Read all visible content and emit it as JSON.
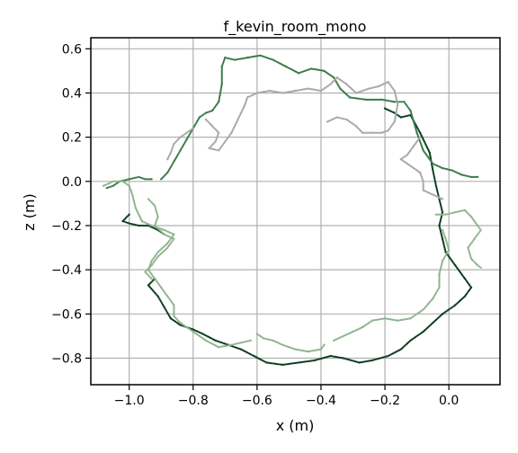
{
  "chart_data": {
    "type": "scatter",
    "title": "f_kevin_room_mono",
    "xlabel": "x (m)",
    "ylabel": "z (m)",
    "xlim": [
      -1.12,
      0.16
    ],
    "ylim": [
      -0.92,
      0.65
    ],
    "xticks": [
      -1.0,
      -0.8,
      -0.6,
      -0.4,
      -0.2,
      0.0
    ],
    "xtick_labels": [
      "−1.0",
      "−0.8",
      "−0.6",
      "−0.4",
      "−0.2",
      "0.0"
    ],
    "yticks": [
      -0.8,
      -0.6,
      -0.4,
      -0.2,
      0.0,
      0.2,
      0.4,
      0.6
    ],
    "ytick_labels": [
      "−0.8",
      "−0.6",
      "−0.4",
      "−0.2",
      "0.0",
      "0.2",
      "0.4",
      "0.6"
    ],
    "grid": true,
    "legend": "none",
    "colors": {
      "dark": "#0b3d1e",
      "mid": "#3a7a48",
      "light": "#8fb48f",
      "gray": "#a8a8a8"
    },
    "series": [
      {
        "color": "#0b3d1e",
        "points": [
          [
            -0.2,
            0.33
          ],
          [
            -0.17,
            0.31
          ],
          [
            -0.15,
            0.29
          ],
          [
            -0.12,
            0.3
          ],
          [
            -0.09,
            0.22
          ],
          [
            -0.06,
            0.13
          ],
          [
            -0.05,
            0.05
          ],
          [
            -0.04,
            -0.02
          ],
          [
            -0.03,
            -0.08
          ],
          [
            -0.02,
            -0.14
          ],
          [
            -0.03,
            -0.2
          ],
          [
            -0.02,
            -0.26
          ],
          [
            -0.01,
            -0.32
          ],
          [
            0.02,
            -0.38
          ],
          [
            0.05,
            -0.44
          ],
          [
            0.07,
            -0.48
          ],
          [
            0.05,
            -0.52
          ],
          [
            0.02,
            -0.56
          ],
          [
            -0.02,
            -0.6
          ],
          [
            -0.05,
            -0.64
          ],
          [
            -0.08,
            -0.68
          ],
          [
            -0.12,
            -0.72
          ],
          [
            -0.15,
            -0.76
          ],
          [
            -0.19,
            -0.79
          ],
          [
            -0.24,
            -0.81
          ],
          [
            -0.28,
            -0.82
          ],
          [
            -0.33,
            -0.8
          ],
          [
            -0.37,
            -0.79
          ],
          [
            -0.42,
            -0.81
          ],
          [
            -0.47,
            -0.82
          ],
          [
            -0.52,
            -0.83
          ],
          [
            -0.57,
            -0.82
          ],
          [
            -0.61,
            -0.79
          ],
          [
            -0.65,
            -0.76
          ],
          [
            -0.69,
            -0.74
          ],
          [
            -0.73,
            -0.72
          ],
          [
            -0.77,
            -0.69
          ],
          [
            -0.8,
            -0.67
          ],
          [
            -0.84,
            -0.65
          ],
          [
            -0.87,
            -0.62
          ],
          [
            -0.89,
            -0.57
          ],
          [
            -0.91,
            -0.52
          ],
          [
            -0.94,
            -0.47
          ],
          [
            -0.92,
            -0.44
          ]
        ]
      },
      {
        "color": "#0b3d1e",
        "points": [
          [
            -0.89,
            -0.24
          ],
          [
            -0.91,
            -0.22
          ],
          [
            -0.94,
            -0.2
          ],
          [
            -0.97,
            -0.2
          ],
          [
            -1.0,
            -0.19
          ],
          [
            -1.02,
            -0.18
          ],
          [
            -1.0,
            -0.15
          ]
        ]
      },
      {
        "color": "#3a7a48",
        "points": [
          [
            -0.9,
            0.01
          ],
          [
            -0.88,
            0.04
          ],
          [
            -0.86,
            0.09
          ],
          [
            -0.84,
            0.14
          ],
          [
            -0.82,
            0.19
          ],
          [
            -0.8,
            0.24
          ],
          [
            -0.78,
            0.29
          ],
          [
            -0.76,
            0.31
          ],
          [
            -0.74,
            0.32
          ],
          [
            -0.72,
            0.36
          ],
          [
            -0.71,
            0.44
          ],
          [
            -0.71,
            0.52
          ],
          [
            -0.7,
            0.56
          ],
          [
            -0.67,
            0.55
          ],
          [
            -0.63,
            0.56
          ],
          [
            -0.59,
            0.57
          ],
          [
            -0.55,
            0.55
          ],
          [
            -0.51,
            0.52
          ],
          [
            -0.47,
            0.49
          ],
          [
            -0.43,
            0.51
          ],
          [
            -0.39,
            0.5
          ],
          [
            -0.36,
            0.47
          ],
          [
            -0.34,
            0.42
          ],
          [
            -0.31,
            0.38
          ],
          [
            -0.26,
            0.37
          ],
          [
            -0.21,
            0.37
          ],
          [
            -0.17,
            0.36
          ],
          [
            -0.14,
            0.36
          ],
          [
            -0.12,
            0.32
          ],
          [
            -0.1,
            0.22
          ],
          [
            -0.08,
            0.14
          ],
          [
            -0.05,
            0.08
          ],
          [
            -0.02,
            0.06
          ],
          [
            0.01,
            0.05
          ],
          [
            0.04,
            0.03
          ],
          [
            0.07,
            0.02
          ],
          [
            0.09,
            0.02
          ]
        ]
      },
      {
        "color": "#3a7a48",
        "points": [
          [
            -0.93,
            0.01
          ],
          [
            -0.95,
            0.01
          ],
          [
            -0.97,
            0.02
          ],
          [
            -1.0,
            0.01
          ],
          [
            -1.03,
            0.0
          ],
          [
            -1.05,
            -0.02
          ],
          [
            -1.07,
            -0.03
          ]
        ]
      },
      {
        "color": "#8fb48f",
        "points": [
          [
            -0.04,
            -0.15
          ],
          [
            -0.01,
            -0.15
          ],
          [
            0.02,
            -0.14
          ],
          [
            0.05,
            -0.13
          ],
          [
            0.07,
            -0.16
          ],
          [
            0.09,
            -0.2
          ],
          [
            0.1,
            -0.22
          ],
          [
            0.08,
            -0.26
          ],
          [
            0.06,
            -0.3
          ],
          [
            0.07,
            -0.35
          ],
          [
            0.09,
            -0.38
          ],
          [
            0.1,
            -0.39
          ]
        ]
      },
      {
        "color": "#8fb48f",
        "points": [
          [
            -0.02,
            -0.22
          ],
          [
            -0.01,
            -0.26
          ],
          [
            0.0,
            -0.31
          ],
          [
            -0.02,
            -0.36
          ],
          [
            -0.03,
            -0.42
          ],
          [
            -0.03,
            -0.48
          ],
          [
            -0.05,
            -0.53
          ],
          [
            -0.08,
            -0.58
          ],
          [
            -0.12,
            -0.62
          ],
          [
            -0.16,
            -0.63
          ],
          [
            -0.2,
            -0.62
          ],
          [
            -0.24,
            -0.63
          ],
          [
            -0.27,
            -0.66
          ],
          [
            -0.3,
            -0.68
          ],
          [
            -0.33,
            -0.7
          ],
          [
            -0.36,
            -0.72
          ]
        ]
      },
      {
        "color": "#8fb48f",
        "points": [
          [
            -0.39,
            -0.74
          ],
          [
            -0.4,
            -0.76
          ],
          [
            -0.44,
            -0.77
          ],
          [
            -0.48,
            -0.76
          ],
          [
            -0.52,
            -0.74
          ],
          [
            -0.55,
            -0.72
          ],
          [
            -0.58,
            -0.71
          ],
          [
            -0.6,
            -0.69
          ]
        ]
      },
      {
        "color": "#8fb48f",
        "points": [
          [
            -0.62,
            -0.72
          ],
          [
            -0.65,
            -0.73
          ],
          [
            -0.68,
            -0.74
          ],
          [
            -0.72,
            -0.75
          ],
          [
            -0.76,
            -0.72
          ],
          [
            -0.8,
            -0.68
          ],
          [
            -0.84,
            -0.64
          ],
          [
            -0.86,
            -0.61
          ],
          [
            -0.86,
            -0.56
          ],
          [
            -0.88,
            -0.52
          ],
          [
            -0.9,
            -0.48
          ],
          [
            -0.92,
            -0.44
          ],
          [
            -0.94,
            -0.4
          ],
          [
            -0.93,
            -0.36
          ],
          [
            -0.91,
            -0.32
          ],
          [
            -0.88,
            -0.28
          ],
          [
            -0.86,
            -0.24
          ],
          [
            -0.89,
            -0.22
          ],
          [
            -0.93,
            -0.2
          ],
          [
            -0.96,
            -0.18
          ],
          [
            -0.98,
            -0.12
          ],
          [
            -0.99,
            -0.06
          ],
          [
            -1.0,
            -0.02
          ],
          [
            -1.02,
            0.0
          ],
          [
            -1.05,
            0.0
          ],
          [
            -1.08,
            -0.02
          ]
        ]
      },
      {
        "color": "#a8a8a8",
        "points": [
          [
            -0.76,
            0.28
          ],
          [
            -0.74,
            0.25
          ],
          [
            -0.72,
            0.22
          ],
          [
            -0.73,
            0.18
          ],
          [
            -0.75,
            0.15
          ],
          [
            -0.72,
            0.14
          ],
          [
            -0.7,
            0.18
          ],
          [
            -0.68,
            0.22
          ],
          [
            -0.66,
            0.28
          ],
          [
            -0.64,
            0.34
          ],
          [
            -0.63,
            0.38
          ],
          [
            -0.6,
            0.4
          ],
          [
            -0.56,
            0.41
          ],
          [
            -0.52,
            0.4
          ],
          [
            -0.48,
            0.41
          ],
          [
            -0.44,
            0.42
          ],
          [
            -0.4,
            0.41
          ],
          [
            -0.37,
            0.44
          ],
          [
            -0.35,
            0.47
          ],
          [
            -0.32,
            0.44
          ],
          [
            -0.29,
            0.4
          ],
          [
            -0.25,
            0.42
          ],
          [
            -0.22,
            0.43
          ],
          [
            -0.19,
            0.45
          ],
          [
            -0.17,
            0.41
          ],
          [
            -0.16,
            0.35
          ],
          [
            -0.17,
            0.27
          ],
          [
            -0.19,
            0.23
          ],
          [
            -0.21,
            0.22
          ],
          [
            -0.24,
            0.22
          ],
          [
            -0.27,
            0.22
          ],
          [
            -0.29,
            0.25
          ],
          [
            -0.32,
            0.28
          ],
          [
            -0.35,
            0.29
          ],
          [
            -0.38,
            0.27
          ]
        ]
      },
      {
        "color": "#a8a8a8",
        "points": [
          [
            -0.88,
            0.1
          ],
          [
            -0.87,
            0.13
          ],
          [
            -0.86,
            0.17
          ],
          [
            -0.84,
            0.2
          ],
          [
            -0.82,
            0.22
          ],
          [
            -0.8,
            0.24
          ]
        ]
      },
      {
        "color": "#a8a8a8",
        "points": [
          [
            -0.09,
            0.2
          ],
          [
            -0.11,
            0.16
          ],
          [
            -0.13,
            0.12
          ],
          [
            -0.15,
            0.1
          ],
          [
            -0.13,
            0.08
          ],
          [
            -0.11,
            0.06
          ],
          [
            -0.09,
            0.04
          ],
          [
            -0.08,
            0.0
          ],
          [
            -0.08,
            -0.04
          ],
          [
            -0.05,
            -0.06
          ],
          [
            -0.02,
            -0.08
          ]
        ]
      },
      {
        "color": "#8fb48f",
        "points": [
          [
            -0.94,
            -0.08
          ],
          [
            -0.92,
            -0.11
          ],
          [
            -0.91,
            -0.16
          ],
          [
            -0.92,
            -0.2
          ],
          [
            -0.89,
            -0.24
          ],
          [
            -0.86,
            -0.26
          ],
          [
            -0.88,
            -0.3
          ],
          [
            -0.91,
            -0.34
          ],
          [
            -0.93,
            -0.38
          ],
          [
            -0.95,
            -0.41
          ],
          [
            -0.93,
            -0.44
          ]
        ]
      }
    ]
  }
}
